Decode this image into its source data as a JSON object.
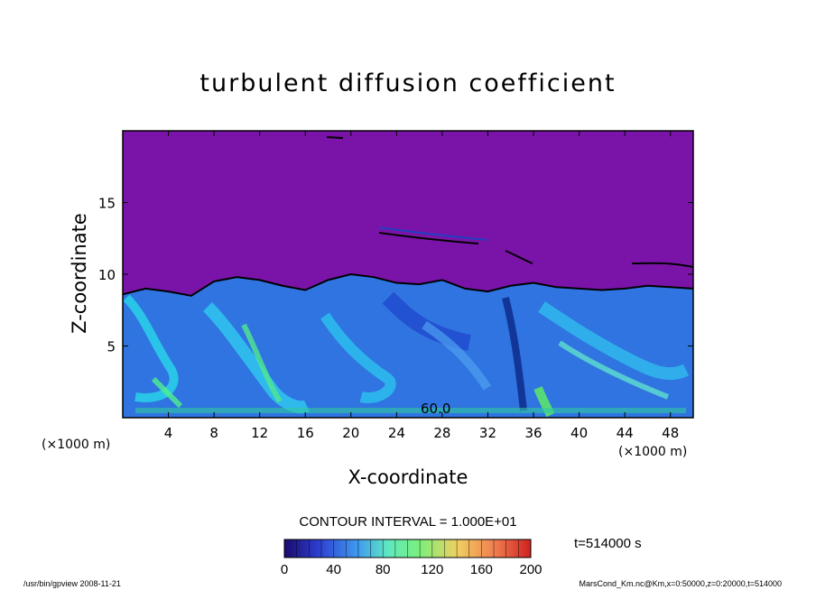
{
  "chart_data": {
    "type": "heatmap",
    "title": "turbulent diffusion coefficient",
    "xlabel": "X-coordinate",
    "ylabel": "Z-coordinate",
    "x_unit": "(×1000 m)",
    "z_unit": "(×1000 m)",
    "xlim": [
      0,
      50
    ],
    "ylim": [
      0,
      20
    ],
    "x_ticks": [
      4,
      8,
      12,
      16,
      20,
      24,
      28,
      32,
      36,
      40,
      44,
      48
    ],
    "y_ticks": [
      5,
      10,
      15
    ],
    "contour_interval_label": "CONTOUR INTERVAL = 1.000E+01",
    "contour_interval": 10,
    "contour_annotation": "60.0",
    "colorbar": {
      "range": [
        0,
        200
      ],
      "ticks": [
        0,
        40,
        80,
        120,
        160,
        200
      ],
      "colors": [
        "#1a0a6e",
        "#2d3fd0",
        "#3f9cf0",
        "#5fe8c0",
        "#7af07a",
        "#f0d060",
        "#f08050",
        "#d02020"
      ]
    },
    "time_label": "t=514000 s",
    "background_color": "#7a14a8",
    "profile_top_z": [
      8.6,
      9.0,
      8.8,
      8.5,
      9.5,
      9.8,
      9.6,
      9.2,
      8.9,
      9.6,
      10.0,
      9.8,
      9.4,
      9.3,
      9.6,
      9.0,
      8.8,
      9.2,
      9.4,
      9.1,
      9.0,
      8.9,
      9.0,
      9.2,
      9.1,
      9.0
    ],
    "profile_x": [
      0,
      2,
      4,
      6,
      8,
      10,
      12,
      14,
      16,
      18,
      20,
      22,
      24,
      26,
      28,
      30,
      32,
      34,
      36,
      38,
      40,
      42,
      44,
      46,
      48,
      50
    ]
  },
  "footer": {
    "left": "/usr/bin/gpview   2008-11-21",
    "right": "MarsCond_Km.nc@Km,x=0:50000,z=0:20000,t=514000"
  }
}
